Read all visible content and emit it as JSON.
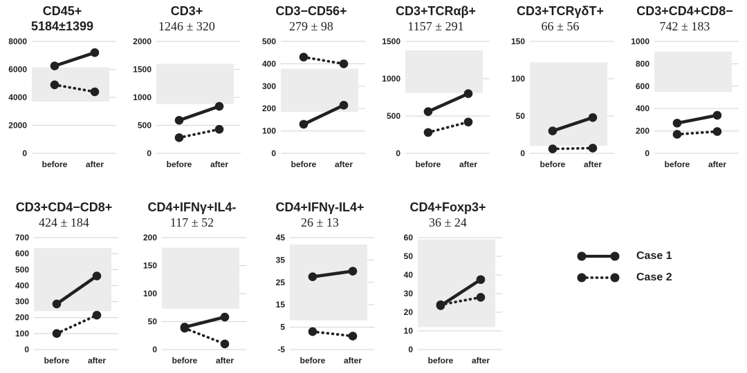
{
  "figure": {
    "categories": [
      "before",
      "after"
    ],
    "legend": {
      "items": [
        {
          "label": "Case 1",
          "style": "solid"
        },
        {
          "label": "Case 2",
          "style": "dotted"
        }
      ]
    },
    "colors": {
      "line": "#212121",
      "marker": "#212121",
      "band": "#ececec",
      "grid": "#d9d9d9",
      "text": "#1f1f1f",
      "background": "#ffffff"
    }
  },
  "chart_data": [
    {
      "type": "line",
      "row": 1,
      "title": "CD45+",
      "stat": "5184±1399",
      "mean": 5184,
      "sd": 1399,
      "stat_style": "sans",
      "categories": [
        "before",
        "after"
      ],
      "ylim": [
        0,
        8000
      ],
      "yticks": [
        0,
        2000,
        4000,
        6000,
        8000
      ],
      "band": [
        3700,
        6150
      ],
      "series": [
        {
          "name": "Case 1",
          "style": "solid",
          "values": [
            6250,
            7200
          ]
        },
        {
          "name": "Case 2",
          "style": "dotted",
          "values": [
            4900,
            4400
          ]
        }
      ]
    },
    {
      "type": "line",
      "row": 1,
      "title": "CD3+",
      "stat": "1246 ± 320",
      "mean": 1246,
      "sd": 320,
      "stat_style": "serif",
      "categories": [
        "before",
        "after"
      ],
      "ylim": [
        0,
        2000
      ],
      "yticks": [
        0,
        500,
        1000,
        1500,
        2000
      ],
      "band": [
        880,
        1600
      ],
      "series": [
        {
          "name": "Case 1",
          "style": "solid",
          "values": [
            590,
            840
          ]
        },
        {
          "name": "Case 2",
          "style": "dotted",
          "values": [
            280,
            430
          ]
        }
      ]
    },
    {
      "type": "line",
      "row": 1,
      "title": "CD3−CD56+",
      "stat": "279 ± 98",
      "mean": 279,
      "sd": 98,
      "stat_style": "serif",
      "categories": [
        "before",
        "after"
      ],
      "ylim": [
        0,
        500
      ],
      "yticks": [
        0,
        100,
        200,
        300,
        400,
        500
      ],
      "band": [
        185,
        378
      ],
      "series": [
        {
          "name": "Case 1",
          "style": "solid",
          "values": [
            130,
            215
          ]
        },
        {
          "name": "Case 2",
          "style": "dotted",
          "values": [
            430,
            400
          ]
        }
      ]
    },
    {
      "type": "line",
      "row": 1,
      "title": "CD3+TCRαβ+",
      "stat": "1157 ± 291",
      "mean": 1157,
      "sd": 291,
      "stat_style": "serif",
      "categories": [
        "before",
        "after"
      ],
      "ylim": [
        0,
        1500
      ],
      "yticks": [
        0,
        500,
        1000,
        1500
      ],
      "band": [
        810,
        1380
      ],
      "series": [
        {
          "name": "Case 1",
          "style": "solid",
          "values": [
            560,
            800
          ]
        },
        {
          "name": "Case 2",
          "style": "dotted",
          "values": [
            280,
            420
          ]
        }
      ]
    },
    {
      "type": "line",
      "row": 1,
      "title": "CD3+TCRγδT+",
      "stat": "66 ± 56",
      "mean": 66,
      "sd": 56,
      "stat_style": "serif",
      "categories": [
        "before",
        "after"
      ],
      "ylim": [
        0,
        150
      ],
      "yticks": [
        0,
        50,
        100,
        150
      ],
      "band": [
        10,
        122
      ],
      "series": [
        {
          "name": "Case 1",
          "style": "solid",
          "values": [
            30,
            48
          ]
        },
        {
          "name": "Case 2",
          "style": "dotted",
          "values": [
            6,
            7
          ]
        }
      ]
    },
    {
      "type": "line",
      "row": 1,
      "title": "CD3+CD4+CD8−",
      "stat": "742 ± 183",
      "mean": 742,
      "sd": 183,
      "stat_style": "serif",
      "categories": [
        "before",
        "after"
      ],
      "ylim": [
        0,
        1000
      ],
      "yticks": [
        0,
        200,
        400,
        600,
        800,
        1000
      ],
      "band": [
        550,
        910
      ],
      "series": [
        {
          "name": "Case 1",
          "style": "solid",
          "values": [
            270,
            340
          ]
        },
        {
          "name": "Case 2",
          "style": "dotted",
          "values": [
            170,
            195
          ]
        }
      ]
    },
    {
      "type": "line",
      "row": 2,
      "title": "CD3+CD4−CD8+",
      "stat": "424 ± 184",
      "mean": 424,
      "sd": 184,
      "stat_style": "serif",
      "categories": [
        "before",
        "after"
      ],
      "ylim": [
        0,
        700
      ],
      "yticks": [
        0,
        100,
        200,
        300,
        400,
        500,
        600,
        700
      ],
      "band": [
        240,
        635
      ],
      "series": [
        {
          "name": "Case 1",
          "style": "solid",
          "values": [
            285,
            460
          ]
        },
        {
          "name": "Case 2",
          "style": "dotted",
          "values": [
            100,
            215
          ]
        }
      ]
    },
    {
      "type": "line",
      "row": 2,
      "title": "CD4+IFNγ+IL4-",
      "stat": "117 ± 52",
      "mean": 117,
      "sd": 52,
      "stat_style": "serif",
      "categories": [
        "before",
        "after"
      ],
      "ylim": [
        0,
        200
      ],
      "yticks": [
        0,
        50,
        100,
        150,
        200
      ],
      "band": [
        73,
        182
      ],
      "series": [
        {
          "name": "Case 1",
          "style": "solid",
          "values": [
            40,
            58
          ]
        },
        {
          "name": "Case 2",
          "style": "dotted",
          "values": [
            38,
            10
          ]
        }
      ]
    },
    {
      "type": "line",
      "row": 2,
      "title": "CD4+IFNγ-IL4+",
      "stat": "26 ± 13",
      "mean": 26,
      "sd": 13,
      "stat_style": "serif",
      "categories": [
        "before",
        "after"
      ],
      "ylim": [
        -5,
        45
      ],
      "yticks": [
        -5,
        5,
        15,
        25,
        35,
        45
      ],
      "band": [
        8,
        42
      ],
      "series": [
        {
          "name": "Case 1",
          "style": "solid",
          "values": [
            27.5,
            30
          ]
        },
        {
          "name": "Case 2",
          "style": "dotted",
          "values": [
            3,
            1
          ]
        }
      ]
    },
    {
      "type": "line",
      "row": 2,
      "title": "CD4+Foxp3+",
      "stat": "36 ± 24",
      "mean": 36,
      "sd": 24,
      "stat_style": "serif",
      "categories": [
        "before",
        "after"
      ],
      "ylim": [
        0,
        60
      ],
      "yticks": [
        0,
        10,
        20,
        30,
        40,
        50,
        60
      ],
      "band": [
        12,
        59
      ],
      "series": [
        {
          "name": "Case 1",
          "style": "solid",
          "values": [
            23.5,
            37.5
          ]
        },
        {
          "name": "Case 2",
          "style": "dotted",
          "values": [
            24,
            28
          ]
        }
      ]
    }
  ]
}
